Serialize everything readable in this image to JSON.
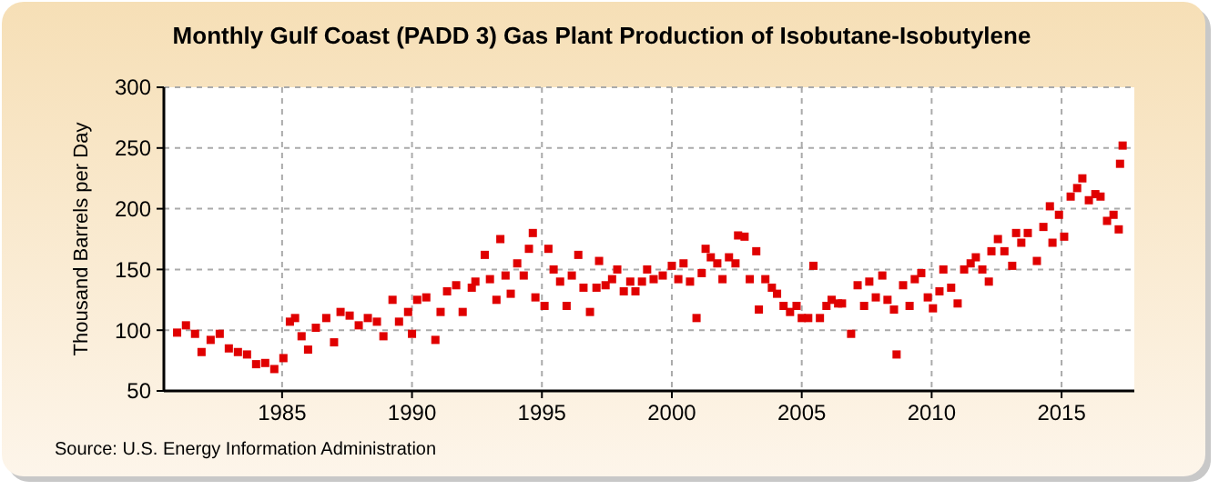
{
  "chart_data": {
    "type": "scatter",
    "title": "Monthly Gulf Coast (PADD 3) Gas Plant Production of Isobutane-Isobutylene",
    "ylabel": "Thousand Barrels per Day",
    "annotations": [
      "Source: U.S. Energy Information Administration"
    ],
    "x": [
      1980.96,
      1981.3,
      1981.65,
      1981.9,
      1982.25,
      1982.6,
      1982.95,
      1983.3,
      1983.65,
      1984.0,
      1984.35,
      1984.7,
      1985.05,
      1985.3,
      1985.5,
      1985.75,
      1986.0,
      1986.3,
      1986.7,
      1987.0,
      1987.25,
      1987.6,
      1987.95,
      1988.3,
      1988.65,
      1988.9,
      1989.25,
      1989.5,
      1989.85,
      1990.0,
      1990.2,
      1990.55,
      1990.9,
      1991.1,
      1991.35,
      1991.7,
      1991.95,
      1992.3,
      1992.44,
      1992.8,
      1993.0,
      1993.25,
      1993.4,
      1993.6,
      1993.8,
      1994.05,
      1994.3,
      1994.5,
      1994.65,
      1994.75,
      1995.1,
      1995.25,
      1995.45,
      1995.7,
      1995.95,
      1996.15,
      1996.4,
      1996.6,
      1996.85,
      1997.1,
      1997.2,
      1997.45,
      1997.7,
      1997.9,
      1998.15,
      1998.4,
      1998.6,
      1998.85,
      1999.05,
      1999.3,
      1999.65,
      2000.0,
      2000.25,
      2000.45,
      2000.7,
      2000.95,
      2001.15,
      2001.3,
      2001.5,
      2001.75,
      2001.95,
      2002.2,
      2002.45,
      2002.55,
      2002.8,
      2003.0,
      2003.25,
      2003.35,
      2003.6,
      2003.85,
      2004.05,
      2004.3,
      2004.55,
      2004.8,
      2005.0,
      2005.25,
      2005.45,
      2005.7,
      2005.95,
      2006.15,
      2006.4,
      2006.55,
      2006.9,
      2007.15,
      2007.4,
      2007.6,
      2007.85,
      2008.1,
      2008.3,
      2008.55,
      2008.65,
      2008.9,
      2009.15,
      2009.35,
      2009.6,
      2009.85,
      2010.05,
      2010.3,
      2010.45,
      2010.75,
      2011.0,
      2011.25,
      2011.5,
      2011.7,
      2011.95,
      2012.2,
      2012.3,
      2012.55,
      2012.8,
      2013.1,
      2013.25,
      2013.45,
      2013.7,
      2014.05,
      2014.3,
      2014.55,
      2014.65,
      2014.9,
      2015.1,
      2015.35,
      2015.6,
      2015.8,
      2016.05,
      2016.3,
      2016.5,
      2016.75,
      2017.0,
      2017.2,
      2017.25,
      2017.35
    ],
    "values": [
      98,
      104,
      97,
      82,
      92,
      97,
      85,
      82,
      80,
      72,
      73,
      68,
      77,
      107,
      110,
      95,
      84,
      102,
      110,
      90,
      115,
      112,
      104,
      110,
      107,
      95,
      125,
      107,
      115,
      97,
      125,
      127,
      92,
      115,
      132,
      137,
      115,
      135,
      140,
      162,
      142,
      125,
      175,
      145,
      130,
      155,
      145,
      167,
      180,
      127,
      120,
      167,
      150,
      140,
      120,
      145,
      162,
      135,
      115,
      135,
      157,
      137,
      142,
      150,
      132,
      140,
      132,
      140,
      150,
      142,
      145,
      153,
      142,
      155,
      140,
      110,
      147,
      167,
      160,
      155,
      142,
      160,
      155,
      178,
      177,
      142,
      165,
      117,
      142,
      135,
      130,
      120,
      115,
      120,
      110,
      110,
      153,
      110,
      120,
      125,
      122,
      122,
      97,
      137,
      120,
      140,
      127,
      145,
      125,
      117,
      80,
      137,
      120,
      142,
      147,
      127,
      118,
      132,
      150,
      135,
      122,
      150,
      155,
      160,
      150,
      140,
      165,
      175,
      165,
      153,
      180,
      172,
      180,
      157,
      185,
      202,
      172,
      195,
      177,
      210,
      217,
      225,
      207,
      212,
      210,
      190,
      195,
      183,
      237,
      252
    ],
    "color": "#e00000",
    "marker": "square",
    "xlim": [
      1980.45,
      2017.8
    ],
    "xticks": [
      1985,
      1990,
      1995,
      2000,
      2005,
      2010,
      2015
    ],
    "ylim": [
      50,
      300
    ],
    "yticks": [
      50,
      100,
      150,
      200,
      250,
      300
    ],
    "grid": true
  }
}
